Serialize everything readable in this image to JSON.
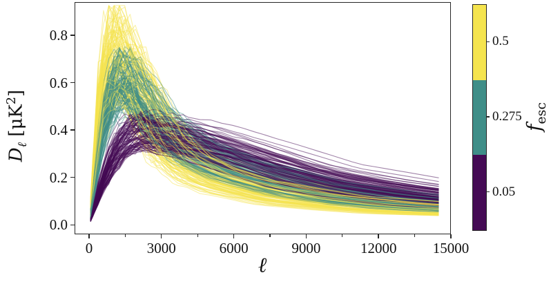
{
  "figure": {
    "background": "#ffffff"
  },
  "chart_data": {
    "type": "line",
    "title": "",
    "xlabel": "ℓ",
    "ylabel": "D_ℓ [μK²]",
    "ylabel_parts": {
      "symbol": "D",
      "subscript": "ℓ",
      "space": " ",
      "unit_open": "[",
      "unit": "μK",
      "unit_exp": "2",
      "unit_close": "]"
    },
    "xlim": [
      -600,
      15000
    ],
    "ylim": [
      -0.04,
      0.94
    ],
    "grid": false,
    "legend": "none (colorbar encodes f_esc)",
    "xticks": {
      "values": [
        0,
        3000,
        6000,
        9000,
        12000,
        15000
      ],
      "labels": [
        "0",
        "3000",
        "6000",
        "9000",
        "12000",
        "15000"
      ]
    },
    "xminorticks": [
      1500,
      4500,
      7500,
      10500,
      13500
    ],
    "yticks": {
      "values": [
        0.0,
        0.2,
        0.4,
        0.6,
        0.8
      ],
      "labels": [
        "0.0",
        "0.2",
        "0.4",
        "0.6",
        "0.8"
      ]
    },
    "colorbar": {
      "label": "f_esc",
      "label_symbol": "f",
      "label_subscript": "esc",
      "orientation": "vertical",
      "position": "right",
      "segments_bottom_to_top": [
        {
          "color": "#440a54",
          "tick_label": "0.05",
          "f_esc": 0.05
        },
        {
          "color": "#3f8e88",
          "tick_label": "0.275",
          "f_esc": 0.275
        },
        {
          "color": "#f5e44e",
          "tick_label": "0.5",
          "f_esc": 0.5
        }
      ]
    },
    "series": [
      {
        "name": "f_esc ≈ 0.5 ensemble",
        "color": "#f5e44e",
        "n_curves": 110,
        "overdraw": 18,
        "x": [
          0,
          500,
          1000,
          1500,
          2000,
          3000,
          4500,
          6000,
          9000,
          12000,
          14500
        ],
        "median_y": [
          0,
          0.55,
          0.72,
          0.68,
          0.58,
          0.37,
          0.235,
          0.175,
          0.11,
          0.082,
          0.063
        ],
        "scale_range": [
          0.72,
          1.28
        ],
        "peak_shift_range": [
          0.75,
          1.3
        ],
        "jag": 0.16
      },
      {
        "name": "f_esc ≈ 0.275 ensemble",
        "color": "#3f8e88",
        "n_curves": 90,
        "overdraw": 8,
        "x": [
          0,
          500,
          1000,
          1500,
          2000,
          3000,
          4500,
          6000,
          9000,
          12000,
          14500
        ],
        "median_y": [
          0,
          0.38,
          0.57,
          0.62,
          0.56,
          0.41,
          0.3,
          0.235,
          0.15,
          0.105,
          0.082
        ],
        "scale_range": [
          0.78,
          1.22
        ],
        "peak_shift_range": [
          0.8,
          1.25
        ],
        "jag": 0.13
      },
      {
        "name": "f_esc ≈ 0.05 ensemble",
        "color": "#440a54",
        "n_curves": 90,
        "overdraw": 0,
        "x": [
          0,
          500,
          1000,
          1500,
          2000,
          3000,
          4500,
          6000,
          9000,
          12000,
          14500
        ],
        "median_y": [
          0,
          0.17,
          0.295,
          0.365,
          0.4,
          0.38,
          0.345,
          0.295,
          0.195,
          0.14,
          0.108
        ],
        "scale_range": [
          0.78,
          1.18
        ],
        "peak_shift_range": [
          0.8,
          1.25
        ],
        "jag": 0.09
      }
    ],
    "style": {
      "line_alpha": 0.5,
      "line_width": 1.1,
      "seed": 1337,
      "spine_color": "#262626",
      "text_color": "#111111"
    }
  }
}
